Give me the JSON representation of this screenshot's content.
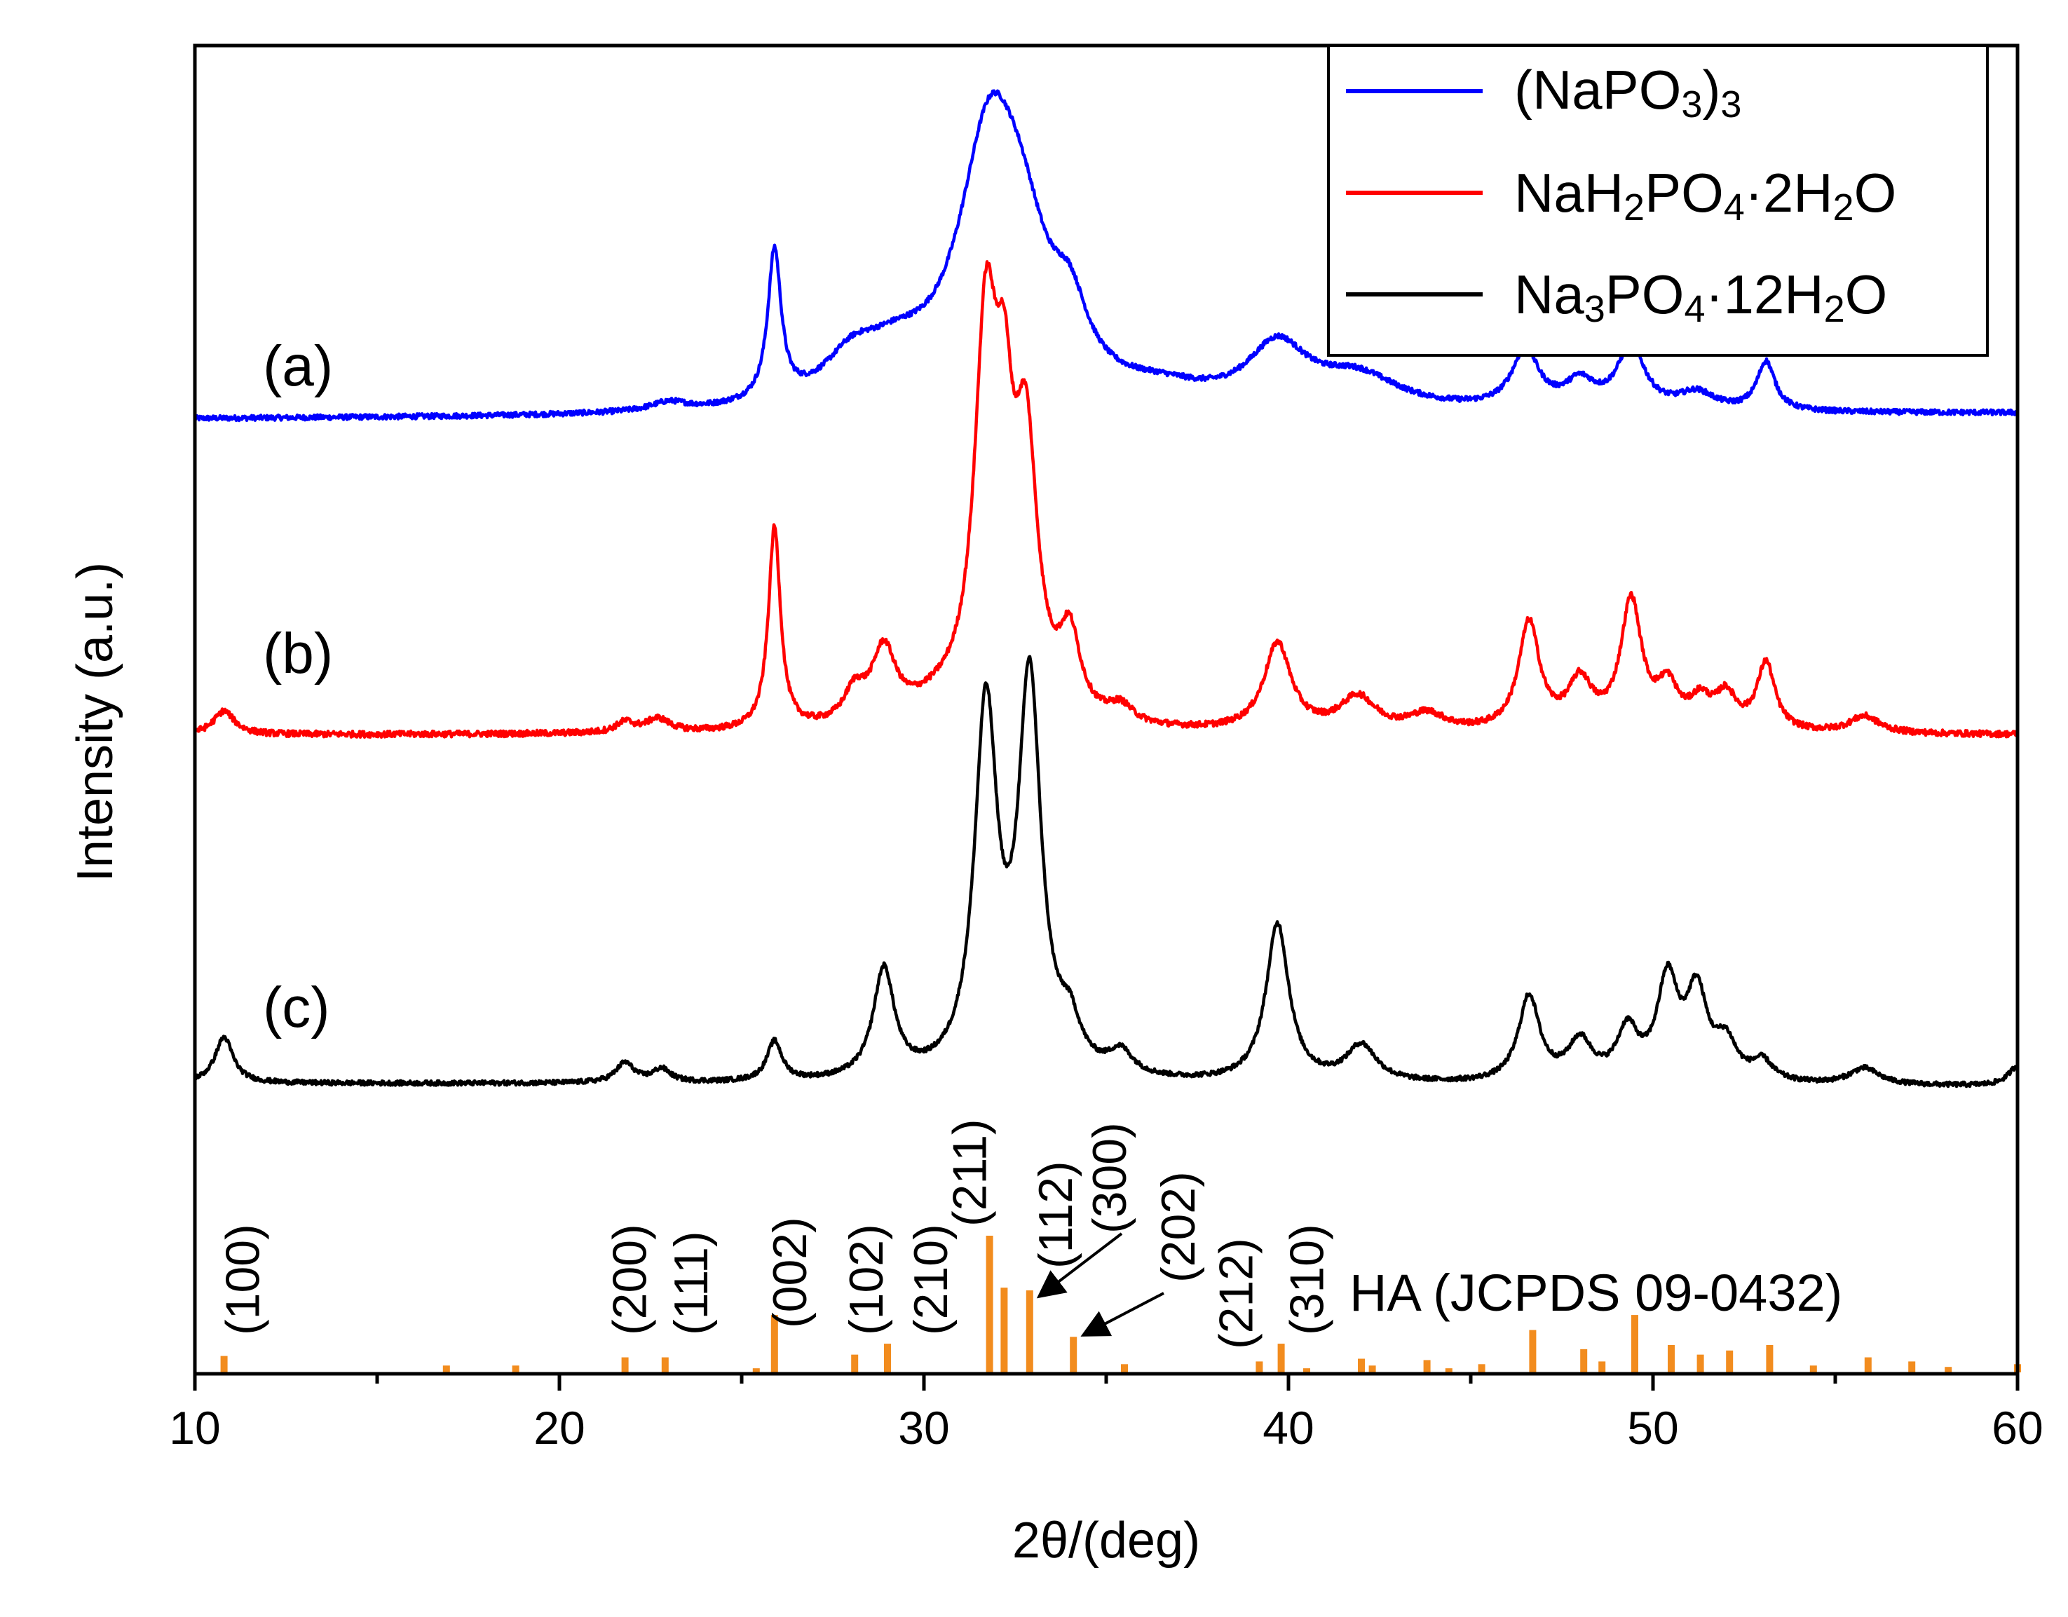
{
  "chart_data": {
    "type": "line",
    "title": "",
    "xlabel": "2θ/(deg)",
    "ylabel": "Intensity (a.u.)",
    "xlim": [
      10,
      60
    ],
    "xticks": [
      10,
      20,
      30,
      40,
      50,
      60
    ],
    "grid": false,
    "legend_position": "top-right",
    "legend": [
      {
        "series": "a",
        "base": "(NaPO",
        "sub1": "3",
        "mid": ")",
        "sub2": "3",
        "end": ""
      },
      {
        "series": "b",
        "base": "NaH",
        "sub1": "2",
        "mid": "PO",
        "sub2": "4",
        "end": "·2H",
        "sub3": "2",
        "end2": "O"
      },
      {
        "series": "c",
        "base": "Na",
        "sub1": "3",
        "mid": "PO",
        "sub2": "4",
        "end": "·12H",
        "sub3": "2",
        "end2": "O"
      }
    ],
    "series": [
      {
        "name": "(NaPO3)3",
        "tag": "(a)",
        "color": "#0000ff",
        "baseline": 0.04,
        "slope": 0.0004,
        "noise": 0.009,
        "peaks": [
          [
            23.0,
            0.03,
            0.6
          ],
          [
            25.9,
            0.52,
            0.22
          ],
          [
            28.0,
            0.12,
            0.9
          ],
          [
            29.2,
            0.14,
            1.3
          ],
          [
            31.8,
            0.88,
            1.05
          ],
          [
            32.7,
            0.35,
            0.9
          ],
          [
            34.0,
            0.22,
            0.6
          ],
          [
            36.5,
            0.05,
            1.5
          ],
          [
            39.7,
            0.21,
            1.0
          ],
          [
            41.9,
            0.11,
            1.4
          ],
          [
            46.5,
            0.2,
            0.45
          ],
          [
            48.0,
            0.09,
            0.5
          ],
          [
            49.4,
            0.22,
            0.45
          ],
          [
            51.2,
            0.06,
            0.6
          ],
          [
            53.1,
            0.17,
            0.3
          ]
        ]
      },
      {
        "name": "NaH2PO4·2H2O",
        "tag": "(b)",
        "color": "#ff0000",
        "baseline": 0.04,
        "slope": 0.0,
        "noise": 0.009,
        "peaks": [
          [
            10.8,
            0.07,
            0.35
          ],
          [
            21.8,
            0.03,
            0.3
          ],
          [
            22.7,
            0.04,
            0.4
          ],
          [
            25.9,
            0.6,
            0.2
          ],
          [
            28.1,
            0.09,
            0.35
          ],
          [
            28.9,
            0.21,
            0.4
          ],
          [
            30.5,
            0.06,
            1.2
          ],
          [
            31.7,
            1.1,
            0.38
          ],
          [
            32.2,
            0.62,
            0.3
          ],
          [
            32.8,
            0.76,
            0.38
          ],
          [
            34.0,
            0.23,
            0.35
          ],
          [
            35.4,
            0.05,
            0.4
          ],
          [
            39.7,
            0.26,
            0.45
          ],
          [
            41.9,
            0.1,
            0.6
          ],
          [
            43.8,
            0.05,
            0.6
          ],
          [
            46.6,
            0.32,
            0.35
          ],
          [
            48.0,
            0.14,
            0.4
          ],
          [
            49.4,
            0.38,
            0.35
          ],
          [
            50.4,
            0.12,
            0.35
          ],
          [
            51.3,
            0.08,
            0.35
          ],
          [
            52.0,
            0.1,
            0.35
          ],
          [
            53.1,
            0.2,
            0.3
          ],
          [
            55.8,
            0.05,
            0.5
          ]
        ]
      },
      {
        "name": "Na3PO4·12H2O",
        "tag": "(c)",
        "color": "#000000",
        "baseline": 0.03,
        "slope": -0.0002,
        "noise": 0.007,
        "peaks": [
          [
            10.8,
            0.14,
            0.3
          ],
          [
            21.8,
            0.06,
            0.3
          ],
          [
            22.8,
            0.04,
            0.3
          ],
          [
            25.9,
            0.12,
            0.25
          ],
          [
            28.9,
            0.33,
            0.35
          ],
          [
            31.7,
            1.1,
            0.38
          ],
          [
            32.9,
            1.18,
            0.38
          ],
          [
            34.0,
            0.12,
            0.35
          ],
          [
            35.4,
            0.07,
            0.4
          ],
          [
            39.7,
            0.48,
            0.38
          ],
          [
            42.0,
            0.11,
            0.5
          ],
          [
            46.6,
            0.26,
            0.35
          ],
          [
            48.0,
            0.12,
            0.4
          ],
          [
            49.3,
            0.15,
            0.35
          ],
          [
            50.4,
            0.3,
            0.35
          ],
          [
            51.2,
            0.26,
            0.35
          ],
          [
            52.0,
            0.11,
            0.35
          ],
          [
            53.0,
            0.06,
            0.35
          ],
          [
            55.8,
            0.05,
            0.5
          ],
          [
            60.0,
            0.06,
            0.3
          ]
        ]
      }
    ],
    "reference": {
      "name": "HA (JCPDS 09-0432)",
      "color": "#f28c1e",
      "sticks": [
        [
          10.8,
          0.12
        ],
        [
          16.9,
          0.05
        ],
        [
          18.8,
          0.05
        ],
        [
          21.8,
          0.11
        ],
        [
          22.9,
          0.11
        ],
        [
          25.4,
          0.03
        ],
        [
          25.9,
          0.42
        ],
        [
          28.1,
          0.13
        ],
        [
          29.0,
          0.21
        ],
        [
          31.8,
          1.0
        ],
        [
          32.2,
          0.62
        ],
        [
          32.9,
          0.6
        ],
        [
          34.1,
          0.26
        ],
        [
          35.5,
          0.06
        ],
        [
          39.2,
          0.08
        ],
        [
          39.8,
          0.21
        ],
        [
          40.5,
          0.03
        ],
        [
          42.0,
          0.1
        ],
        [
          42.3,
          0.05
        ],
        [
          43.8,
          0.09
        ],
        [
          44.4,
          0.03
        ],
        [
          45.3,
          0.06
        ],
        [
          46.7,
          0.31
        ],
        [
          48.1,
          0.17
        ],
        [
          48.6,
          0.08
        ],
        [
          49.5,
          0.42
        ],
        [
          50.5,
          0.2
        ],
        [
          51.3,
          0.13
        ],
        [
          52.1,
          0.16
        ],
        [
          53.2,
          0.2
        ],
        [
          54.4,
          0.05
        ],
        [
          55.9,
          0.11
        ],
        [
          57.1,
          0.08
        ],
        [
          58.1,
          0.04
        ],
        [
          60.0,
          0.06
        ]
      ],
      "hkl": [
        {
          "label": "(100)",
          "x": 10.8
        },
        {
          "label": "(200)",
          "x": 21.8
        },
        {
          "label": "(111)",
          "x": 22.9
        },
        {
          "label": "(002)",
          "x": 25.9
        },
        {
          "label": "(102)",
          "x": 28.1
        },
        {
          "label": "(210)",
          "x": 29.0
        },
        {
          "label": "(211)",
          "x": 31.8
        },
        {
          "label": "(112)",
          "x": 32.9
        },
        {
          "label": "(300)",
          "x": 34.1
        },
        {
          "label": "(202)",
          "x": 35.5
        },
        {
          "label": "(212)",
          "x": 39.2
        },
        {
          "label": "(310)",
          "x": 39.8
        }
      ]
    }
  }
}
